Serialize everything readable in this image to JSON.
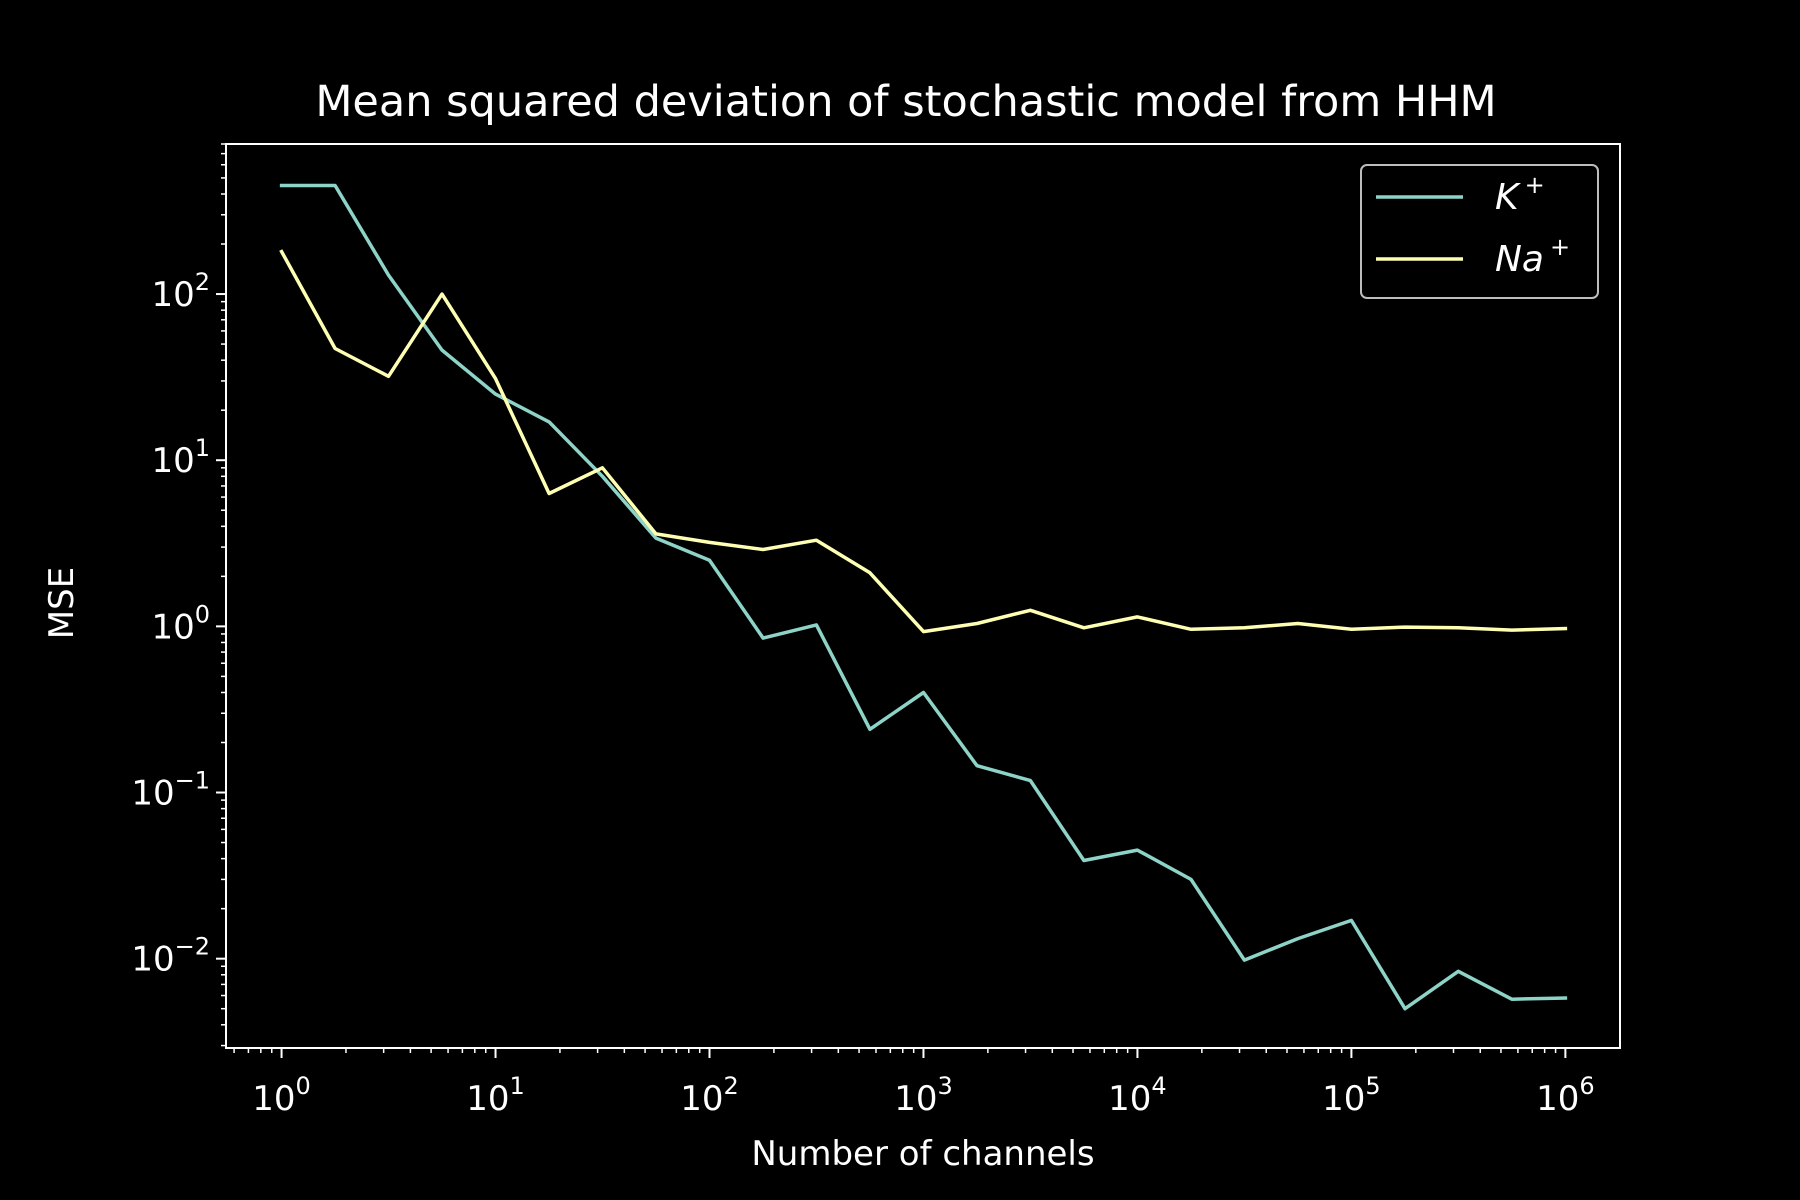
{
  "chart_data": {
    "type": "line",
    "title": "Mean squared deviation of stochastic model from HHM",
    "xlabel": "Number of channels",
    "ylabel": "MSE",
    "xscale": "log",
    "yscale": "log",
    "xlim": [
      0.55,
      1800000
    ],
    "ylim": [
      0.0029,
      800
    ],
    "x_tick_labels": [
      {
        "base": "10",
        "exp": "0",
        "value": 1
      },
      {
        "base": "10",
        "exp": "1",
        "value": 10
      },
      {
        "base": "10",
        "exp": "2",
        "value": 100
      },
      {
        "base": "10",
        "exp": "3",
        "value": 1000
      },
      {
        "base": "10",
        "exp": "4",
        "value": 10000
      },
      {
        "base": "10",
        "exp": "5",
        "value": 100000
      },
      {
        "base": "10",
        "exp": "6",
        "value": 1000000
      }
    ],
    "y_tick_labels": [
      {
        "base": "10",
        "exp": "2",
        "value": 100
      },
      {
        "base": "10",
        "exp": "1",
        "value": 10
      },
      {
        "base": "10",
        "exp": "0",
        "value": 1
      },
      {
        "base": "10",
        "exp": "−1",
        "value": 0.1
      },
      {
        "base": "10",
        "exp": "−2",
        "value": 0.01
      }
    ],
    "grid": false,
    "legend_position": "top-right",
    "x": [
      1,
      1.78,
      3.16,
      5.62,
      10,
      17.8,
      31.6,
      56.2,
      100,
      178,
      316,
      562,
      1000,
      1780,
      3160,
      5620,
      10000,
      17800,
      31600,
      56200,
      100000,
      178000,
      316000,
      562000,
      1000000
    ],
    "series": [
      {
        "name": "K",
        "name_sup": "+",
        "color": "#8dd3c7",
        "values": [
          450,
          450,
          130,
          46,
          25,
          17,
          8,
          3.4,
          2.5,
          0.85,
          1.02,
          0.24,
          0.4,
          0.145,
          0.118,
          0.039,
          0.045,
          0.03,
          0.0098,
          0.0132,
          0.017,
          0.005,
          0.0084,
          0.0057,
          0.0058
        ]
      },
      {
        "name": "Na",
        "name_sup": "+",
        "color": "#ffffb3",
        "values": [
          180,
          47,
          32,
          100,
          31,
          6.3,
          9,
          3.6,
          3.2,
          2.9,
          3.3,
          2.1,
          0.93,
          1.04,
          1.25,
          0.98,
          1.14,
          0.96,
          0.98,
          1.04,
          0.96,
          0.99,
          0.98,
          0.95,
          0.97
        ]
      }
    ]
  }
}
